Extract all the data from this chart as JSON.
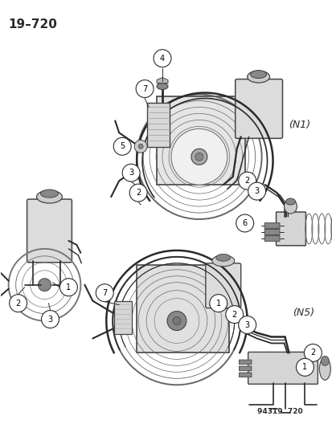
{
  "title": "19–720",
  "diagram_id": "94319  720",
  "label_N1": "(N1)",
  "label_N5": "(N5)",
  "bg_color": "#ffffff",
  "fg_color": "#000000",
  "fig_width": 4.14,
  "fig_height": 5.33,
  "dpi": 100,
  "line_color": "#2a2a2a",
  "light_gray": "#cccccc",
  "mid_gray": "#888888",
  "dark_gray": "#444444"
}
